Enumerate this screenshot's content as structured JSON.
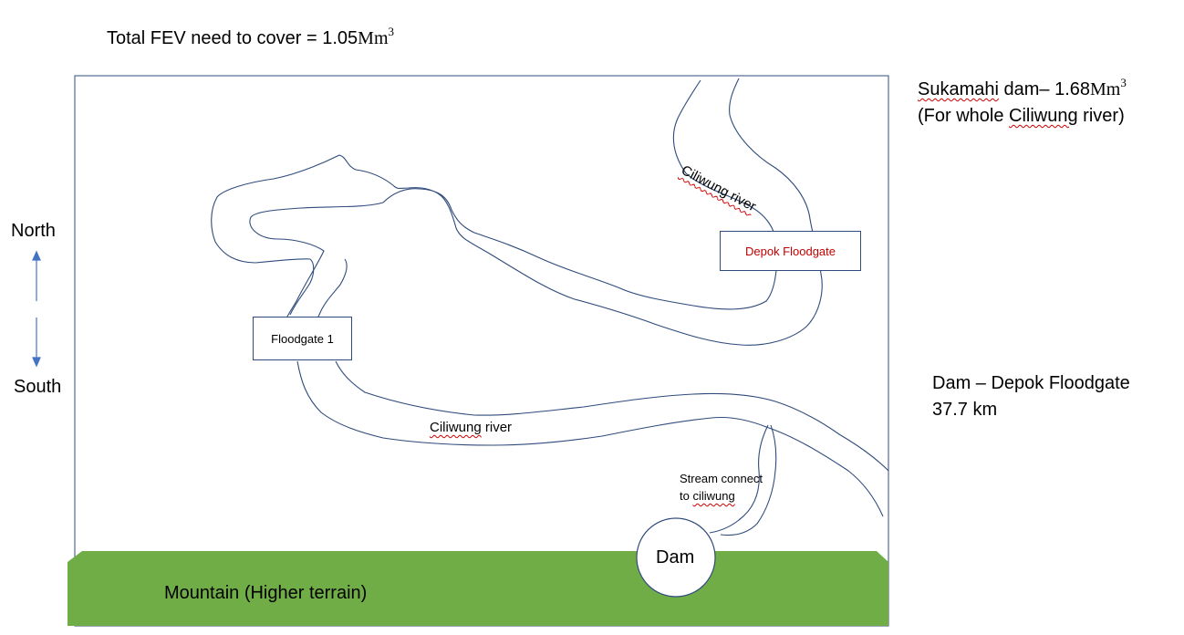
{
  "header": {
    "fev_text": "Total FEV need to cover = 1.05",
    "fev_unit": "Mm",
    "fev_exp": "3"
  },
  "side_notes": {
    "sukamahi_name": "Sukamahi",
    "sukamahi_rest": " dam– 1.68",
    "sukamahi_unit": "Mm",
    "sukamahi_exp": "3",
    "sukamahi_line2_pre": "(For whole ",
    "sukamahi_line2_river": "Ciliwung",
    "sukamahi_line2_post": " river)",
    "distance_line1": "Dam – Depok Floodgate",
    "distance_line2": "37.7 km"
  },
  "compass": {
    "north": "North",
    "south": "South"
  },
  "map": {
    "river_label_top": "Ciliwung river",
    "river_label_bottom_word1": "Ciliwung",
    "river_label_bottom_word2": " river",
    "stream_line1": "Stream connect",
    "stream_line2_pre": "to ",
    "stream_line2_word": "ciliwung",
    "depok_floodgate": "Depok Floodgate",
    "floodgate_1": "Floodgate 1",
    "dam": "Dam",
    "mountain": "Mountain (Higher terrain)"
  },
  "colors": {
    "river_line": "#2f4b7c",
    "frame": "#2f4b7c",
    "mountain_fill": "#70ad47",
    "arrow": "#4472c4",
    "depok_text": "#c00000"
  }
}
